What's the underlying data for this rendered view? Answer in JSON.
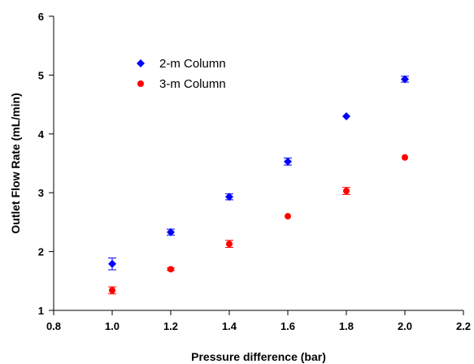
{
  "chart_data": {
    "type": "scatter",
    "title": "",
    "xlabel": "Pressure difference (bar)",
    "ylabel": "Outlet Flow Rate (mL/min)",
    "xlim": [
      0.8,
      2.2
    ],
    "ylim": [
      1,
      6
    ],
    "xticks": [
      "0.8",
      "1.0",
      "1.2",
      "1.4",
      "1.6",
      "1.8",
      "2.0",
      "2.2"
    ],
    "yticks": [
      "1",
      "2",
      "3",
      "4",
      "5",
      "6"
    ],
    "grid": false,
    "legend": "upper-left-inside",
    "series": [
      {
        "name": "2-m Column",
        "color": "#0000ff",
        "marker": "diamond",
        "x": [
          1.0,
          1.2,
          1.4,
          1.6,
          1.8,
          2.0
        ],
        "y": [
          1.79,
          2.33,
          2.93,
          3.53,
          4.3,
          4.93
        ],
        "err": [
          0.1,
          0.05,
          0.05,
          0.06,
          0.0,
          0.05
        ]
      },
      {
        "name": "3-m Column",
        "color": "#ff0000",
        "marker": "circle",
        "x": [
          1.0,
          1.2,
          1.4,
          1.6,
          1.8,
          2.0
        ],
        "y": [
          1.34,
          1.7,
          2.13,
          2.6,
          3.03,
          3.6
        ],
        "err": [
          0.06,
          0.02,
          0.06,
          0.0,
          0.06,
          0.0
        ]
      }
    ]
  }
}
